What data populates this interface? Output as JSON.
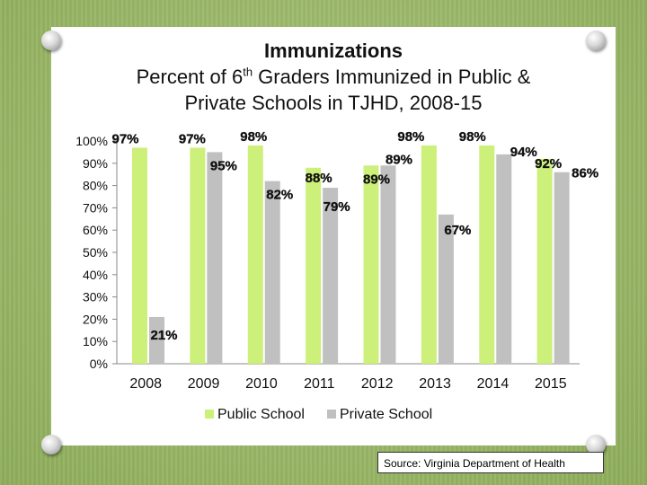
{
  "chart_data": {
    "type": "bar",
    "title_line1": "Immunizations",
    "title_line2_pre": "Percent of 6",
    "title_line2_sup": "th",
    "title_line2_post": " Graders Immunized in Public &",
    "title_line3": "Private Schools in TJHD, 2008-15",
    "categories": [
      "2008",
      "2009",
      "2010",
      "2011",
      "2012",
      "2013",
      "2014",
      "2015"
    ],
    "series": [
      {
        "name": "Public School",
        "color": "#ccf07a",
        "values": [
          97,
          97,
          98,
          88,
          89,
          98,
          98,
          92
        ],
        "labels": [
          "97%",
          "97%",
          "98%",
          "88%",
          "89%",
          "98%",
          "98%",
          "92%"
        ]
      },
      {
        "name": "Private School",
        "color": "#c0c0c0",
        "values": [
          21,
          95,
          82,
          79,
          89,
          67,
          94,
          86
        ],
        "labels": [
          "21%",
          "95%",
          "82%",
          "79%",
          "89%",
          "67%",
          "94%",
          "86%"
        ]
      }
    ],
    "yticks": [
      "100%",
      "90%",
      "80%",
      "70%",
      "60%",
      "50%",
      "40%",
      "30%",
      "20%",
      "10%",
      "0%"
    ],
    "ylim": [
      0,
      100
    ],
    "legend_position": "bottom"
  },
  "source": "Source: Virginia Department of Health"
}
